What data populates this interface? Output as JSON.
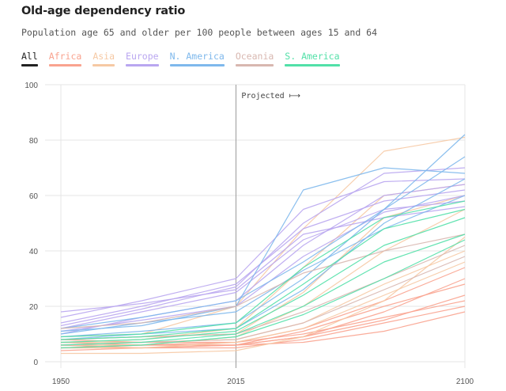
{
  "header": {
    "title": "Old-age dependency ratio",
    "subtitle": "Population age 65 and older per 100 people between ages 15 and 64"
  },
  "tabs": [
    {
      "label": "All",
      "color": "#222222",
      "active": true
    },
    {
      "label": "Africa",
      "color": "#f9a38f",
      "active": false
    },
    {
      "label": "Asia",
      "color": "#f6c9a4",
      "active": false
    },
    {
      "label": "Europe",
      "color": "#b9a6f0",
      "active": false
    },
    {
      "label": "N. America",
      "color": "#7eb8ec",
      "active": false
    },
    {
      "label": "Oceania",
      "color": "#d8b7b0",
      "active": false
    },
    {
      "label": "S. America",
      "color": "#52e0a8",
      "active": false
    }
  ],
  "chart_data": {
    "type": "line",
    "ylim": [
      0,
      100
    ],
    "xlim": [
      1950,
      2100
    ],
    "yticks": [
      "0",
      "20",
      "40",
      "60",
      "80",
      "100"
    ],
    "xticks": [
      "1950",
      "2015",
      "2100"
    ],
    "annotation": "Projected ⟼",
    "projection_start": 2015,
    "grid": true,
    "series": [
      {
        "group": "Africa",
        "color": "#f9a38f",
        "x": [
          1950,
          1980,
          2015,
          2040,
          2070,
          2100
        ],
        "values": [
          6,
          6,
          6,
          9,
          15,
          24
        ]
      },
      {
        "group": "Africa",
        "color": "#f9a38f",
        "x": [
          1950,
          1980,
          2015,
          2040,
          2070,
          2100
        ],
        "values": [
          5,
          5,
          6,
          7,
          11,
          18
        ]
      },
      {
        "group": "Africa",
        "color": "#f9a38f",
        "x": [
          1950,
          1980,
          2015,
          2040,
          2070,
          2100
        ],
        "values": [
          7,
          6,
          7,
          10,
          16,
          22
        ]
      },
      {
        "group": "Africa",
        "color": "#f9a38f",
        "x": [
          1950,
          1980,
          2015,
          2040,
          2070,
          2100
        ],
        "values": [
          4,
          5,
          5,
          8,
          14,
          20
        ]
      },
      {
        "group": "Africa",
        "color": "#f9a38f",
        "x": [
          1950,
          1980,
          2015,
          2040,
          2070,
          2100
        ],
        "values": [
          6,
          5,
          6,
          9,
          18,
          30
        ]
      },
      {
        "group": "Africa",
        "color": "#f9a38f",
        "x": [
          1950,
          1980,
          2015,
          2040,
          2070,
          2100
        ],
        "values": [
          8,
          7,
          7,
          12,
          22,
          34
        ]
      },
      {
        "group": "Africa",
        "color": "#f9a38f",
        "x": [
          1950,
          1980,
          2015,
          2040,
          2070,
          2100
        ],
        "values": [
          5,
          6,
          6,
          11,
          20,
          28
        ]
      },
      {
        "group": "Asia",
        "color": "#f6c9a4",
        "x": [
          1950,
          1980,
          2015,
          2040,
          2070,
          2100
        ],
        "values": [
          7,
          7,
          8,
          14,
          28,
          40
        ]
      },
      {
        "group": "Asia",
        "color": "#f6c9a4",
        "x": [
          1950,
          1980,
          2015,
          2040,
          2070,
          2100
        ],
        "values": [
          8,
          9,
          10,
          25,
          52,
          60
        ]
      },
      {
        "group": "Asia",
        "color": "#f6c9a4",
        "x": [
          1950,
          1980,
          2015,
          2040,
          2070,
          2100
        ],
        "values": [
          9,
          10,
          20,
          48,
          76,
          81
        ]
      },
      {
        "group": "Asia",
        "color": "#f6c9a4",
        "x": [
          1950,
          1980,
          2015,
          2040,
          2070,
          2100
        ],
        "values": [
          6,
          6,
          9,
          20,
          40,
          55
        ]
      },
      {
        "group": "Asia",
        "color": "#f6c9a4",
        "x": [
          1950,
          1980,
          2015,
          2040,
          2070,
          2100
        ],
        "values": [
          5,
          5,
          7,
          12,
          24,
          36
        ]
      },
      {
        "group": "Asia",
        "color": "#f6c9a4",
        "x": [
          1950,
          1980,
          2015,
          2040,
          2070,
          2100
        ],
        "values": [
          7,
          8,
          12,
          34,
          60,
          64
        ]
      },
      {
        "group": "Asia",
        "color": "#f6c9a4",
        "x": [
          1950,
          1980,
          2015,
          2040,
          2070,
          2100
        ],
        "values": [
          3,
          3,
          4,
          9,
          22,
          45
        ]
      },
      {
        "group": "Europe",
        "color": "#b9a6f0",
        "x": [
          1950,
          1980,
          2015,
          2040,
          2070,
          2100
        ],
        "values": [
          14,
          20,
          28,
          48,
          58,
          62
        ]
      },
      {
        "group": "Europe",
        "color": "#b9a6f0",
        "x": [
          1950,
          1980,
          2015,
          2040,
          2070,
          2100
        ],
        "values": [
          12,
          18,
          25,
          44,
          55,
          58
        ]
      },
      {
        "group": "Europe",
        "color": "#b9a6f0",
        "x": [
          1950,
          1980,
          2015,
          2040,
          2070,
          2100
        ],
        "values": [
          16,
          22,
          30,
          55,
          65,
          66
        ]
      },
      {
        "group": "Europe",
        "color": "#b9a6f0",
        "x": [
          1950,
          1980,
          2015,
          2040,
          2070,
          2100
        ],
        "values": [
          10,
          16,
          22,
          42,
          60,
          64
        ]
      },
      {
        "group": "Europe",
        "color": "#b9a6f0",
        "x": [
          1950,
          1980,
          2015,
          2040,
          2070,
          2100
        ],
        "values": [
          18,
          21,
          26,
          46,
          52,
          56
        ]
      },
      {
        "group": "Europe",
        "color": "#b9a6f0",
        "x": [
          1950,
          1980,
          2015,
          2040,
          2070,
          2100
        ],
        "values": [
          11,
          15,
          20,
          38,
          54,
          60
        ]
      },
      {
        "group": "Europe",
        "color": "#b9a6f0",
        "x": [
          1950,
          1980,
          2015,
          2040,
          2070,
          2100
        ],
        "values": [
          13,
          19,
          27,
          50,
          68,
          70
        ]
      },
      {
        "group": "N. America",
        "color": "#7eb8ec",
        "x": [
          1950,
          1980,
          2015,
          2040,
          2070,
          2100
        ],
        "values": [
          12,
          16,
          22,
          36,
          55,
          82
        ]
      },
      {
        "group": "N. America",
        "color": "#7eb8ec",
        "x": [
          1950,
          1980,
          2015,
          2040,
          2070,
          2100
        ],
        "values": [
          10,
          14,
          18,
          33,
          48,
          60
        ]
      },
      {
        "group": "N. America",
        "color": "#7eb8ec",
        "x": [
          1950,
          1980,
          2015,
          2040,
          2070,
          2100
        ],
        "values": [
          9,
          11,
          14,
          30,
          55,
          74
        ]
      },
      {
        "group": "N. America",
        "color": "#7eb8ec",
        "x": [
          1950,
          1980,
          2015,
          2040,
          2070,
          2100
        ],
        "values": [
          8,
          10,
          12,
          26,
          50,
          66
        ]
      },
      {
        "group": "N. America",
        "color": "#7eb8ec",
        "x": [
          1950,
          1980,
          2015,
          2040,
          2070,
          2100
        ],
        "values": [
          11,
          13,
          20,
          62,
          70,
          68
        ]
      },
      {
        "group": "Oceania",
        "color": "#d8b7b0",
        "x": [
          1950,
          1980,
          2015,
          2040,
          2070,
          2100
        ],
        "values": [
          12,
          14,
          20,
          32,
          40,
          46
        ]
      },
      {
        "group": "Oceania",
        "color": "#d8b7b0",
        "x": [
          1950,
          1980,
          2015,
          2040,
          2070,
          2100
        ],
        "values": [
          8,
          9,
          10,
          18,
          30,
          42
        ]
      },
      {
        "group": "Oceania",
        "color": "#d8b7b0",
        "x": [
          1950,
          1980,
          2015,
          2040,
          2070,
          2100
        ],
        "values": [
          6,
          7,
          8,
          14,
          26,
          38
        ]
      },
      {
        "group": "S. America",
        "color": "#52e0a8",
        "x": [
          1950,
          1980,
          2015,
          2040,
          2070,
          2100
        ],
        "values": [
          7,
          8,
          11,
          24,
          42,
          52
        ]
      },
      {
        "group": "S. America",
        "color": "#52e0a8",
        "x": [
          1950,
          1980,
          2015,
          2040,
          2070,
          2100
        ],
        "values": [
          6,
          7,
          10,
          20,
          36,
          46
        ]
      },
      {
        "group": "S. America",
        "color": "#52e0a8",
        "x": [
          1950,
          1980,
          2015,
          2040,
          2070,
          2100
        ],
        "values": [
          8,
          9,
          12,
          28,
          48,
          55
        ]
      },
      {
        "group": "S. America",
        "color": "#52e0a8",
        "x": [
          1950,
          1980,
          2015,
          2040,
          2070,
          2100
        ],
        "values": [
          5,
          6,
          9,
          17,
          30,
          44
        ]
      },
      {
        "group": "S. America",
        "color": "#52e0a8",
        "x": [
          1950,
          1980,
          2015,
          2040,
          2070,
          2100
        ],
        "values": [
          9,
          10,
          14,
          34,
          52,
          58
        ]
      }
    ]
  }
}
